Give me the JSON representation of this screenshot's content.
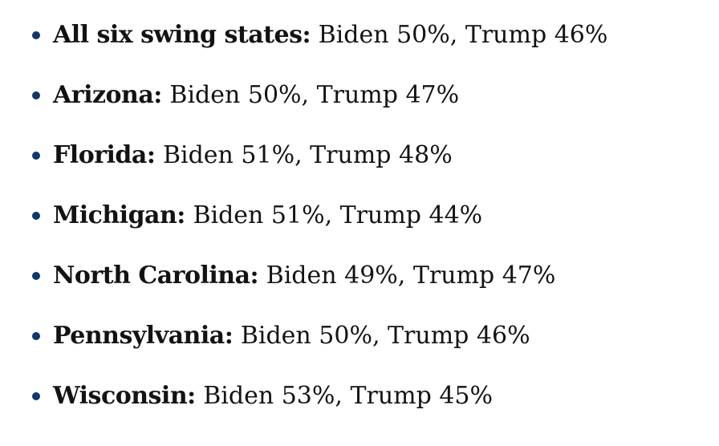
{
  "page": {
    "background_color": "#ffffff",
    "text_color": "#131313",
    "bullet_color": "#123769"
  },
  "poll_list": {
    "items": [
      {
        "label": "All six swing states:",
        "detail": "Biden 50%, Trump 46%"
      },
      {
        "label": "Arizona:",
        "detail": "Biden 50%, Trump 47%"
      },
      {
        "label": "Florida:",
        "detail": "Biden 51%, Trump 48%"
      },
      {
        "label": "Michigan:",
        "detail": "Biden 51%, Trump 44%"
      },
      {
        "label": "North Carolina:",
        "detail": "Biden 49%, Trump 47%"
      },
      {
        "label": "Pennsylvania:",
        "detail": "Biden 50%, Trump 46%"
      },
      {
        "label": "Wisconsin:",
        "detail": "Biden 53%, Trump 45%"
      }
    ]
  }
}
